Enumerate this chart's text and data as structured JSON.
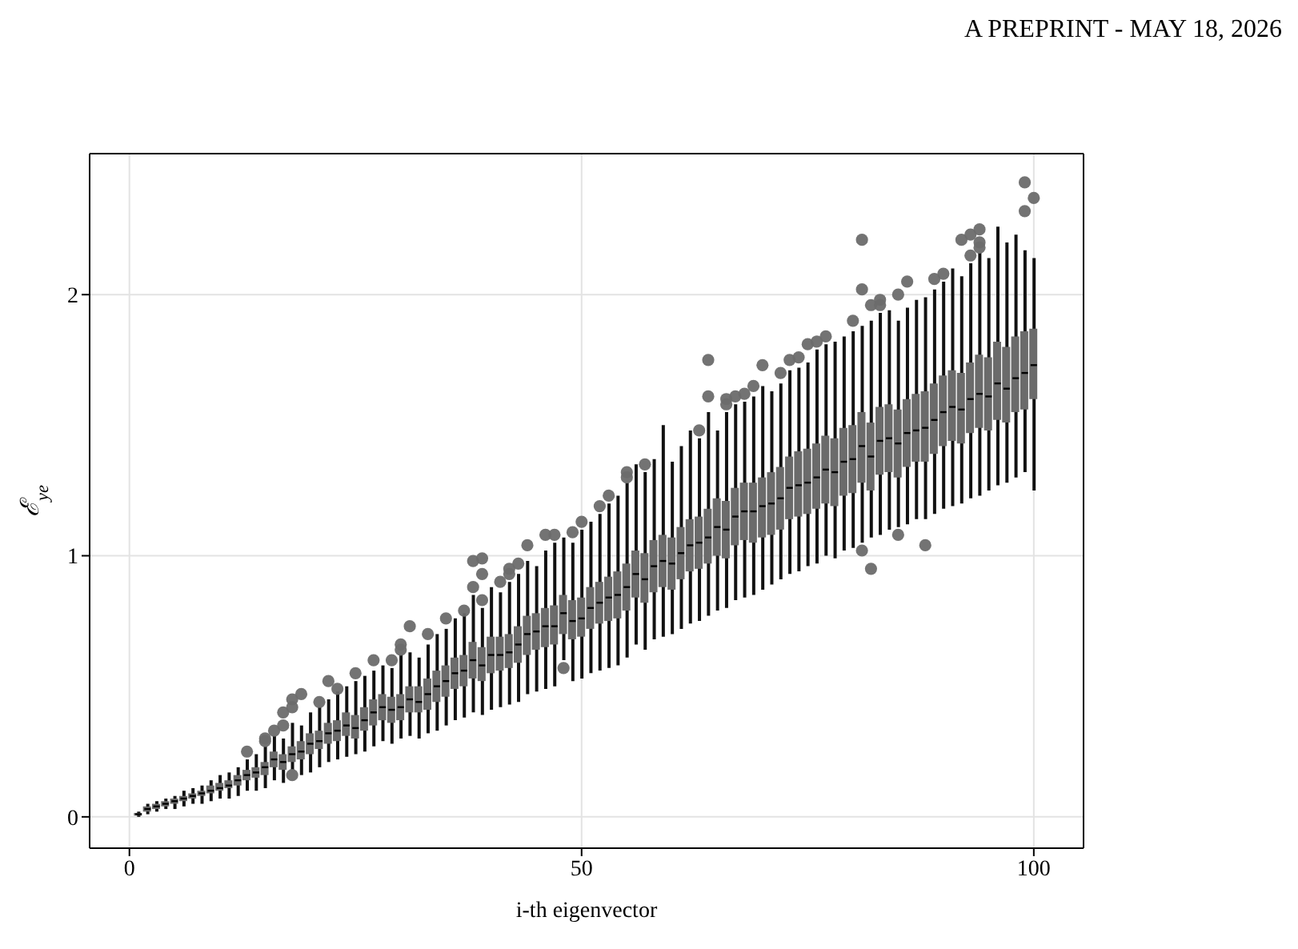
{
  "chart_data": {
    "type": "box",
    "annotations": [
      "A PREPRINT - MAY 18, 2026"
    ],
    "xlabel": "i-th eigenvector",
    "ylabel": "ℰ$_{ye}$",
    "xlim": [
      -4.4,
      105.5
    ],
    "ylim": [
      -0.12,
      2.54
    ],
    "xticks": [
      0,
      50,
      100
    ],
    "yticks": [
      0,
      1,
      2
    ],
    "grid": true,
    "color": "#6b6b6b",
    "x": [
      1,
      2,
      3,
      4,
      5,
      6,
      7,
      8,
      9,
      10,
      11,
      12,
      13,
      14,
      15,
      16,
      17,
      18,
      19,
      20,
      21,
      22,
      23,
      24,
      25,
      26,
      27,
      28,
      29,
      30,
      31,
      32,
      33,
      34,
      35,
      36,
      37,
      38,
      39,
      40,
      41,
      42,
      43,
      44,
      45,
      46,
      47,
      48,
      49,
      50,
      51,
      52,
      53,
      54,
      55,
      56,
      57,
      58,
      59,
      60,
      61,
      62,
      63,
      64,
      65,
      66,
      67,
      68,
      69,
      70,
      71,
      72,
      73,
      74,
      75,
      76,
      77,
      78,
      79,
      80,
      81,
      82,
      83,
      84,
      85,
      86,
      87,
      88,
      89,
      90,
      91,
      92,
      93,
      94,
      95,
      96,
      97,
      98,
      99,
      100
    ],
    "boxes": [
      {
        "low": 0,
        "q1": 0.005,
        "median": 0.01,
        "q3": 0.015,
        "high": 0.02
      },
      {
        "low": 0.01,
        "q1": 0.02,
        "median": 0.03,
        "q3": 0.04,
        "high": 0.05
      },
      {
        "low": 0.02,
        "q1": 0.03,
        "median": 0.04,
        "q3": 0.05,
        "high": 0.06
      },
      {
        "low": 0.03,
        "q1": 0.04,
        "median": 0.05,
        "q3": 0.06,
        "high": 0.07
      },
      {
        "low": 0.03,
        "q1": 0.05,
        "median": 0.06,
        "q3": 0.07,
        "high": 0.08
      },
      {
        "low": 0.04,
        "q1": 0.06,
        "median": 0.07,
        "q3": 0.08,
        "high": 0.1
      },
      {
        "low": 0.05,
        "q1": 0.07,
        "median": 0.08,
        "q3": 0.09,
        "high": 0.11
      },
      {
        "low": 0.05,
        "q1": 0.08,
        "median": 0.09,
        "q3": 0.1,
        "high": 0.12
      },
      {
        "low": 0.06,
        "q1": 0.09,
        "median": 0.1,
        "q3": 0.12,
        "high": 0.14
      },
      {
        "low": 0.07,
        "q1": 0.1,
        "median": 0.11,
        "q3": 0.13,
        "high": 0.16
      },
      {
        "low": 0.07,
        "q1": 0.11,
        "median": 0.12,
        "q3": 0.14,
        "high": 0.17
      },
      {
        "low": 0.08,
        "q1": 0.12,
        "median": 0.14,
        "q3": 0.16,
        "high": 0.19
      },
      {
        "low": 0.1,
        "q1": 0.14,
        "median": 0.16,
        "q3": 0.18,
        "high": 0.22,
        "outliers": [
          0.25
        ]
      },
      {
        "low": 0.1,
        "q1": 0.15,
        "median": 0.17,
        "q3": 0.19,
        "high": 0.24
      },
      {
        "low": 0.11,
        "q1": 0.16,
        "median": 0.19,
        "q3": 0.21,
        "high": 0.27,
        "outliers": [
          0.3,
          0.29
        ]
      },
      {
        "low": 0.14,
        "q1": 0.19,
        "median": 0.22,
        "q3": 0.25,
        "high": 0.31,
        "outliers": [
          0.33
        ]
      },
      {
        "low": 0.13,
        "q1": 0.18,
        "median": 0.21,
        "q3": 0.24,
        "high": 0.3,
        "outliers": [
          0.35,
          0.4
        ]
      },
      {
        "low": 0.18,
        "q1": 0.21,
        "median": 0.24,
        "q3": 0.27,
        "high": 0.36,
        "outliers": [
          0.45,
          0.42,
          0.16
        ]
      },
      {
        "low": 0.16,
        "q1": 0.22,
        "median": 0.25,
        "q3": 0.29,
        "high": 0.35,
        "outliers": [
          0.47
        ]
      },
      {
        "low": 0.17,
        "q1": 0.24,
        "median": 0.28,
        "q3": 0.32,
        "high": 0.4
      },
      {
        "low": 0.19,
        "q1": 0.26,
        "median": 0.29,
        "q3": 0.33,
        "high": 0.42,
        "outliers": [
          0.44
        ]
      },
      {
        "low": 0.21,
        "q1": 0.28,
        "median": 0.32,
        "q3": 0.36,
        "high": 0.45,
        "outliers": [
          0.52
        ]
      },
      {
        "low": 0.22,
        "q1": 0.29,
        "median": 0.33,
        "q3": 0.37,
        "high": 0.48,
        "outliers": [
          0.49
        ]
      },
      {
        "low": 0.23,
        "q1": 0.31,
        "median": 0.35,
        "q3": 0.4,
        "high": 0.5
      },
      {
        "low": 0.24,
        "q1": 0.3,
        "median": 0.34,
        "q3": 0.39,
        "high": 0.52,
        "outliers": [
          0.55
        ]
      },
      {
        "low": 0.25,
        "q1": 0.33,
        "median": 0.37,
        "q3": 0.42,
        "high": 0.54
      },
      {
        "low": 0.27,
        "q1": 0.35,
        "median": 0.4,
        "q3": 0.45,
        "high": 0.56,
        "outliers": [
          0.6
        ]
      },
      {
        "low": 0.29,
        "q1": 0.37,
        "median": 0.42,
        "q3": 0.47,
        "high": 0.58
      },
      {
        "low": 0.28,
        "q1": 0.36,
        "median": 0.41,
        "q3": 0.46,
        "high": 0.57,
        "outliers": [
          0.6
        ]
      },
      {
        "low": 0.3,
        "q1": 0.37,
        "median": 0.42,
        "q3": 0.47,
        "high": 0.62,
        "outliers": [
          0.66,
          0.64
        ]
      },
      {
        "low": 0.31,
        "q1": 0.4,
        "median": 0.45,
        "q3": 0.5,
        "high": 0.63,
        "outliers": [
          0.73
        ]
      },
      {
        "low": 0.3,
        "q1": 0.4,
        "median": 0.44,
        "q3": 0.5,
        "high": 0.61
      },
      {
        "low": 0.32,
        "q1": 0.41,
        "median": 0.47,
        "q3": 0.53,
        "high": 0.66,
        "outliers": [
          0.7
        ]
      },
      {
        "low": 0.33,
        "q1": 0.44,
        "median": 0.5,
        "q3": 0.56,
        "high": 0.7
      },
      {
        "low": 0.35,
        "q1": 0.46,
        "median": 0.52,
        "q3": 0.58,
        "high": 0.72,
        "outliers": [
          0.76
        ]
      },
      {
        "low": 0.37,
        "q1": 0.49,
        "median": 0.55,
        "q3": 0.61,
        "high": 0.76
      },
      {
        "low": 0.38,
        "q1": 0.5,
        "median": 0.56,
        "q3": 0.62,
        "high": 0.78,
        "outliers": [
          0.79
        ]
      },
      {
        "low": 0.4,
        "q1": 0.53,
        "median": 0.6,
        "q3": 0.67,
        "high": 0.85,
        "outliers": [
          0.98,
          0.88
        ]
      },
      {
        "low": 0.39,
        "q1": 0.52,
        "median": 0.58,
        "q3": 0.65,
        "high": 0.8,
        "outliers": [
          0.99,
          0.93,
          0.83
        ]
      },
      {
        "low": 0.41,
        "q1": 0.55,
        "median": 0.62,
        "q3": 0.69,
        "high": 0.88
      },
      {
        "low": 0.42,
        "q1": 0.56,
        "median": 0.62,
        "q3": 0.69,
        "high": 0.86,
        "outliers": [
          0.9
        ]
      },
      {
        "low": 0.43,
        "q1": 0.57,
        "median": 0.63,
        "q3": 0.7,
        "high": 0.9,
        "outliers": [
          0.95,
          0.93
        ]
      },
      {
        "low": 0.44,
        "q1": 0.59,
        "median": 0.66,
        "q3": 0.73,
        "high": 0.93,
        "outliers": [
          0.97
        ]
      },
      {
        "low": 0.47,
        "q1": 0.62,
        "median": 0.7,
        "q3": 0.77,
        "high": 0.98,
        "outliers": [
          1.04
        ]
      },
      {
        "low": 0.48,
        "q1": 0.64,
        "median": 0.71,
        "q3": 0.78,
        "high": 0.96
      },
      {
        "low": 0.49,
        "q1": 0.65,
        "median": 0.73,
        "q3": 0.8,
        "high": 1.02,
        "outliers": [
          1.08
        ]
      },
      {
        "low": 0.5,
        "q1": 0.66,
        "median": 0.73,
        "q3": 0.81,
        "high": 1.05,
        "outliers": [
          1.08
        ]
      },
      {
        "low": 0.6,
        "q1": 0.7,
        "median": 0.78,
        "q3": 0.85,
        "high": 1.07,
        "outliers": [
          0.57
        ]
      },
      {
        "low": 0.52,
        "q1": 0.68,
        "median": 0.75,
        "q3": 0.83,
        "high": 1.05,
        "outliers": [
          1.09
        ]
      },
      {
        "low": 0.53,
        "q1": 0.69,
        "median": 0.76,
        "q3": 0.84,
        "high": 1.1,
        "outliers": [
          1.13
        ]
      },
      {
        "low": 0.55,
        "q1": 0.72,
        "median": 0.8,
        "q3": 0.88,
        "high": 1.13
      },
      {
        "low": 0.56,
        "q1": 0.74,
        "median": 0.82,
        "q3": 0.9,
        "high": 1.16,
        "outliers": [
          1.19
        ]
      },
      {
        "low": 0.57,
        "q1": 0.75,
        "median": 0.84,
        "q3": 0.92,
        "high": 1.2,
        "outliers": [
          1.23
        ]
      },
      {
        "low": 0.58,
        "q1": 0.76,
        "median": 0.85,
        "q3": 0.94,
        "high": 1.23
      },
      {
        "low": 0.61,
        "q1": 0.79,
        "median": 0.88,
        "q3": 0.97,
        "high": 1.28,
        "outliers": [
          1.32,
          1.3
        ]
      },
      {
        "low": 0.66,
        "q1": 0.84,
        "median": 0.93,
        "q3": 1.02,
        "high": 1.35
      },
      {
        "low": 0.64,
        "q1": 0.82,
        "median": 0.91,
        "q3": 1.01,
        "high": 1.32,
        "outliers": [
          1.35
        ]
      },
      {
        "low": 0.68,
        "q1": 0.86,
        "median": 0.96,
        "q3": 1.06,
        "high": 1.37
      },
      {
        "low": 0.69,
        "q1": 0.88,
        "median": 0.98,
        "q3": 1.08,
        "high": 1.5
      },
      {
        "low": 0.7,
        "q1": 0.87,
        "median": 0.97,
        "q3": 1.07,
        "high": 1.36
      },
      {
        "low": 0.72,
        "q1": 0.91,
        "median": 1.01,
        "q3": 1.11,
        "high": 1.42
      },
      {
        "low": 0.74,
        "q1": 0.94,
        "median": 1.04,
        "q3": 1.14,
        "high": 1.48
      },
      {
        "low": 0.75,
        "q1": 0.95,
        "median": 1.05,
        "q3": 1.15,
        "high": 1.45,
        "outliers": [
          1.48
        ]
      },
      {
        "low": 0.77,
        "q1": 0.97,
        "median": 1.07,
        "q3": 1.18,
        "high": 1.55,
        "outliers": [
          1.75,
          1.61
        ]
      },
      {
        "low": 0.79,
        "q1": 1,
        "median": 1.11,
        "q3": 1.22,
        "high": 1.48
      },
      {
        "low": 0.8,
        "q1": 0.99,
        "median": 1.1,
        "q3": 1.21,
        "high": 1.55,
        "outliers": [
          1.6,
          1.58
        ]
      },
      {
        "low": 0.83,
        "q1": 1.04,
        "median": 1.15,
        "q3": 1.26,
        "high": 1.58,
        "outliers": [
          1.61
        ]
      },
      {
        "low": 0.84,
        "q1": 1.06,
        "median": 1.17,
        "q3": 1.28,
        "high": 1.59,
        "outliers": [
          1.62
        ]
      },
      {
        "low": 0.85,
        "q1": 1.05,
        "median": 1.17,
        "q3": 1.28,
        "high": 1.61,
        "outliers": [
          1.65
        ]
      },
      {
        "low": 0.87,
        "q1": 1.07,
        "median": 1.19,
        "q3": 1.3,
        "high": 1.65,
        "outliers": [
          1.73
        ]
      },
      {
        "low": 0.89,
        "q1": 1.08,
        "median": 1.2,
        "q3": 1.32,
        "high": 1.63
      },
      {
        "low": 0.91,
        "q1": 1.1,
        "median": 1.22,
        "q3": 1.34,
        "high": 1.66,
        "outliers": [
          1.7
        ]
      },
      {
        "low": 0.93,
        "q1": 1.14,
        "median": 1.26,
        "q3": 1.38,
        "high": 1.71,
        "outliers": [
          1.75
        ]
      },
      {
        "low": 0.94,
        "q1": 1.15,
        "median": 1.27,
        "q3": 1.4,
        "high": 1.72,
        "outliers": [
          1.76
        ]
      },
      {
        "low": 0.96,
        "q1": 1.16,
        "median": 1.28,
        "q3": 1.41,
        "high": 1.74,
        "outliers": [
          1.81
        ]
      },
      {
        "low": 0.97,
        "q1": 1.18,
        "median": 1.3,
        "q3": 1.43,
        "high": 1.79,
        "outliers": [
          1.82
        ]
      },
      {
        "low": 1,
        "q1": 1.2,
        "median": 1.33,
        "q3": 1.46,
        "high": 1.81,
        "outliers": [
          1.84
        ]
      },
      {
        "low": 0.99,
        "q1": 1.19,
        "median": 1.32,
        "q3": 1.45,
        "high": 1.82
      },
      {
        "low": 1.02,
        "q1": 1.23,
        "median": 1.36,
        "q3": 1.49,
        "high": 1.84
      },
      {
        "low": 1.03,
        "q1": 1.24,
        "median": 1.37,
        "q3": 1.5,
        "high": 1.86,
        "outliers": [
          1.9
        ]
      },
      {
        "low": 1.05,
        "q1": 1.28,
        "median": 1.42,
        "q3": 1.55,
        "high": 1.88,
        "outliers": [
          2.21,
          2.02,
          1.02
        ]
      },
      {
        "low": 1.07,
        "q1": 1.25,
        "median": 1.38,
        "q3": 1.51,
        "high": 1.9,
        "outliers": [
          1.96,
          0.95
        ]
      },
      {
        "low": 1.08,
        "q1": 1.31,
        "median": 1.44,
        "q3": 1.57,
        "high": 1.93,
        "outliers": [
          1.98,
          1.96
        ]
      },
      {
        "low": 1.1,
        "q1": 1.32,
        "median": 1.45,
        "q3": 1.58,
        "high": 1.94
      },
      {
        "low": 1.11,
        "q1": 1.3,
        "median": 1.43,
        "q3": 1.56,
        "high": 1.9,
        "outliers": [
          2,
          1.08
        ]
      },
      {
        "low": 1.12,
        "q1": 1.34,
        "median": 1.47,
        "q3": 1.6,
        "high": 1.95,
        "outliers": [
          2.05
        ]
      },
      {
        "low": 1.14,
        "q1": 1.36,
        "median": 1.48,
        "q3": 1.62,
        "high": 1.98
      },
      {
        "low": 1.14,
        "q1": 1.36,
        "median": 1.49,
        "q3": 1.63,
        "high": 1.99,
        "outliers": [
          1.04
        ]
      },
      {
        "low": 1.16,
        "q1": 1.39,
        "median": 1.52,
        "q3": 1.66,
        "high": 2.02,
        "outliers": [
          2.06
        ]
      },
      {
        "low": 1.18,
        "q1": 1.42,
        "median": 1.55,
        "q3": 1.69,
        "high": 2.05,
        "outliers": [
          2.08
        ]
      },
      {
        "low": 1.19,
        "q1": 1.44,
        "median": 1.57,
        "q3": 1.71,
        "high": 2.1
      },
      {
        "low": 1.2,
        "q1": 1.43,
        "median": 1.56,
        "q3": 1.7,
        "high": 2.07,
        "outliers": [
          2.21
        ]
      },
      {
        "low": 1.22,
        "q1": 1.47,
        "median": 1.6,
        "q3": 1.74,
        "high": 2.12,
        "outliers": [
          2.23,
          2.15
        ]
      },
      {
        "low": 1.23,
        "q1": 1.49,
        "median": 1.62,
        "q3": 1.77,
        "high": 2.16,
        "outliers": [
          2.25,
          2.2,
          2.18
        ]
      },
      {
        "low": 1.25,
        "q1": 1.48,
        "median": 1.61,
        "q3": 1.76,
        "high": 2.14
      },
      {
        "low": 1.27,
        "q1": 1.52,
        "median": 1.66,
        "q3": 1.82,
        "high": 2.26
      },
      {
        "low": 1.28,
        "q1": 1.51,
        "median": 1.64,
        "q3": 1.8,
        "high": 2.2
      },
      {
        "low": 1.3,
        "q1": 1.55,
        "median": 1.68,
        "q3": 1.84,
        "high": 2.23
      },
      {
        "low": 1.32,
        "q1": 1.56,
        "median": 1.7,
        "q3": 1.86,
        "high": 2.17,
        "outliers": [
          2.43,
          2.32
        ]
      },
      {
        "low": 1.25,
        "q1": 1.6,
        "median": 1.73,
        "q3": 1.87,
        "high": 2.14,
        "outliers": [
          2.37
        ]
      }
    ]
  }
}
